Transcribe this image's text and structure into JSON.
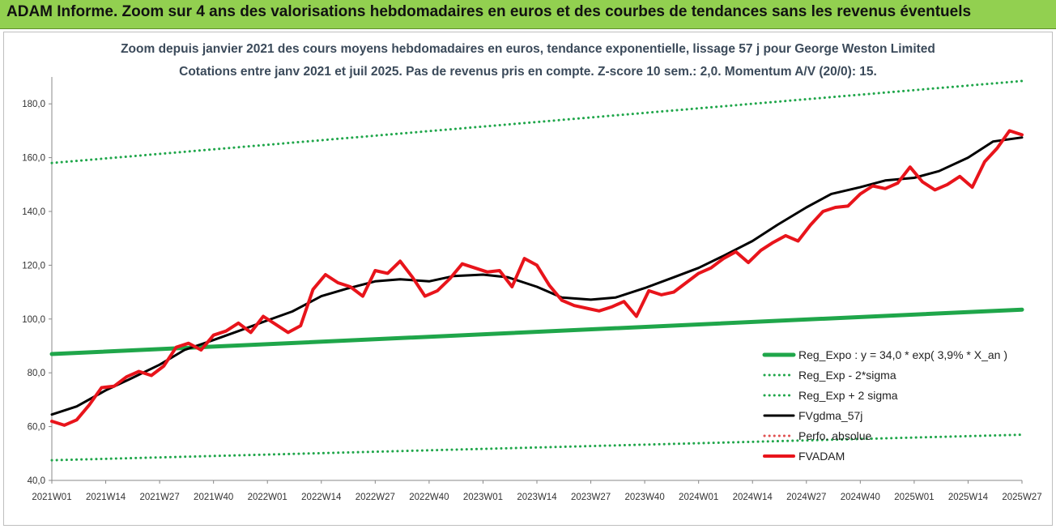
{
  "banner": "ADAM Informe. Zoom sur 4 ans des valorisations hebdomadaires en euros et des courbes de tendances sans les revenus éventuels",
  "chart_data": {
    "type": "line",
    "title": "Zoom depuis janvier 2021 des cours moyens hebdomadaires en euros, tendance exponentielle, lissage 57 j pour George Weston Limited",
    "subtitle": "Cotations entre janv 2021 et juil 2025. Pas de revenus pris en compte. Z-score 10 sem.: 2,0. Momentum A/V (20/0): 15.",
    "xlabel": "",
    "ylabel": "",
    "ylim": [
      40,
      190
    ],
    "yticks": [
      "40,0",
      "60,0",
      "80,0",
      "100,0",
      "120,0",
      "140,0",
      "160,0",
      "180,0"
    ],
    "xticks": [
      "2021W01",
      "2021W14",
      "2021W27",
      "2021W40",
      "2022W01",
      "2022W14",
      "2022W27",
      "2022W40",
      "2023W01",
      "2023W14",
      "2023W27",
      "2023W40",
      "2024W01",
      "2024W14",
      "2024W27",
      "2024W40",
      "2025W01",
      "2025W14",
      "2025W27"
    ],
    "legend_position": "bottom-right",
    "grid": false,
    "series": [
      {
        "name": "Reg_Expo : y = 34,0 * exp( 3,9% *  X_an )",
        "style": "solid-thick",
        "color": "#1fa64a",
        "x": [
          0,
          234
        ],
        "values": [
          87.0,
          103.5
        ]
      },
      {
        "name": "Reg_Exp - 2*sigma",
        "style": "dotted",
        "color": "#1fa64a",
        "x": [
          0,
          234
        ],
        "values": [
          47.5,
          57.0
        ]
      },
      {
        "name": "Reg_Exp + 2 sigma",
        "style": "dotted",
        "color": "#1fa64a",
        "x": [
          0,
          234
        ],
        "values": [
          158.0,
          188.5
        ]
      },
      {
        "name": "FVgdma_57j",
        "style": "solid",
        "color": "#000000",
        "x": [
          0,
          6,
          13,
          19,
          26,
          32,
          39,
          45,
          52,
          58,
          65,
          71,
          78,
          84,
          91,
          97,
          104,
          110,
          117,
          123,
          130,
          136,
          143,
          150,
          156,
          162,
          169,
          175,
          182,
          188,
          195,
          201,
          208,
          214,
          221,
          227,
          234
        ],
        "values": [
          64.5,
          67.5,
          73.5,
          77.8,
          83.0,
          88.5,
          92.2,
          95.5,
          99.5,
          102.8,
          108.5,
          111.2,
          114.0,
          114.8,
          114.0,
          116.0,
          116.5,
          115.5,
          112.0,
          108.0,
          107.2,
          108.0,
          111.5,
          115.5,
          119.0,
          123.5,
          129.0,
          135.0,
          141.5,
          146.5,
          149.0,
          151.5,
          152.5,
          155.0,
          160.0,
          166.0,
          167.5
        ]
      },
      {
        "name": "Perfo. absolue",
        "style": "dotted",
        "color": "#e05050",
        "x": [],
        "values": []
      },
      {
        "name": "FVADAM",
        "style": "solid-thick",
        "color": "#e8141b",
        "x": [
          0,
          3,
          6,
          9,
          12,
          15,
          18,
          21,
          24,
          27,
          30,
          33,
          36,
          39,
          42,
          45,
          48,
          51,
          54,
          57,
          60,
          63,
          66,
          69,
          72,
          75,
          78,
          81,
          84,
          87,
          90,
          93,
          96,
          99,
          102,
          105,
          108,
          111,
          114,
          117,
          120,
          123,
          126,
          129,
          132,
          135,
          138,
          141,
          144,
          147,
          150,
          153,
          156,
          159,
          162,
          165,
          168,
          171,
          174,
          177,
          180,
          183,
          186,
          189,
          192,
          195,
          198,
          201,
          204,
          207,
          210,
          213,
          216,
          219,
          222,
          225,
          228,
          231,
          234
        ],
        "values": [
          62.0,
          60.5,
          62.5,
          68.0,
          74.5,
          75.0,
          78.5,
          80.5,
          79.0,
          82.5,
          89.5,
          91.0,
          88.5,
          94.0,
          95.5,
          98.5,
          95.0,
          101.0,
          98.0,
          95.0,
          97.5,
          111.0,
          116.5,
          113.5,
          112.0,
          108.5,
          118.0,
          117.0,
          121.5,
          115.5,
          108.5,
          110.5,
          115.0,
          120.5,
          119.0,
          117.5,
          118.0,
          112.0,
          122.5,
          120.0,
          112.5,
          107.0,
          105.0,
          104.0,
          103.0,
          104.5,
          106.5,
          101.0,
          110.5,
          109.0,
          110.0,
          113.5,
          117.0,
          119.0,
          122.5,
          125.0,
          121.0,
          125.5,
          128.5,
          131.0,
          129.0,
          135.0,
          140.0,
          141.5,
          142.0,
          146.5,
          149.5,
          148.5,
          150.5,
          156.5,
          151.0,
          148.0,
          150.0,
          153.0,
          149.0,
          158.5,
          163.5,
          170.0,
          168.5
        ]
      }
    ]
  }
}
